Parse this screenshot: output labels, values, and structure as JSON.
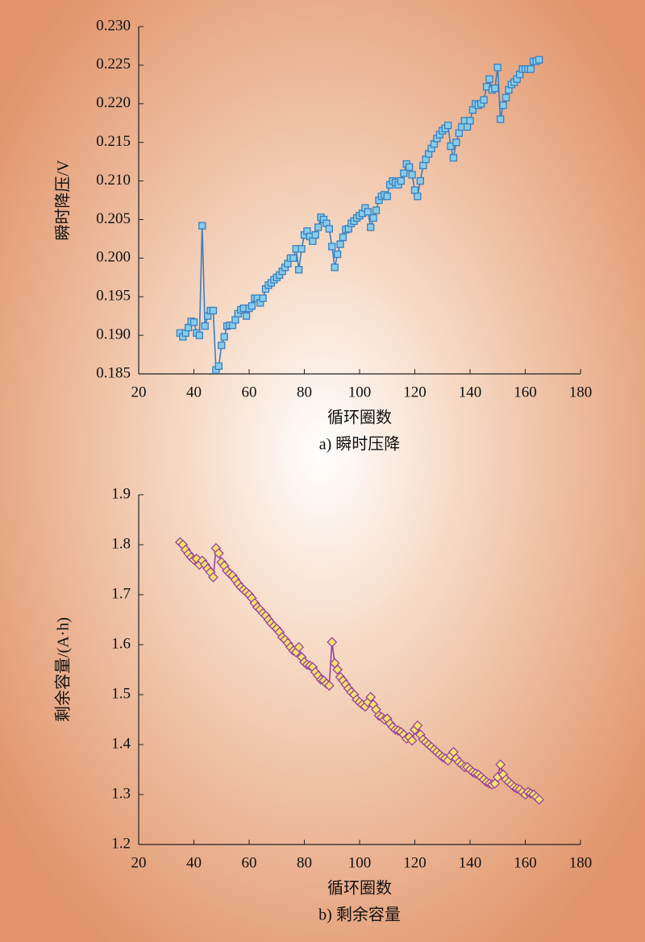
{
  "chart_data": [
    {
      "type": "line",
      "caption": "a) 瞬时压降",
      "xlabel": "循环圈数",
      "ylabel": "瞬时降压/V",
      "xlim": [
        20,
        180
      ],
      "xticks": [
        20,
        40,
        60,
        80,
        100,
        120,
        140,
        160,
        180
      ],
      "ylim": [
        0.185,
        0.23
      ],
      "yticks": [
        0.185,
        {
          "value": 0.19,
          "label": "0.190"
        },
        0.195,
        {
          "value": 0.2,
          "label": "0.200"
        },
        0.205,
        {
          "value": 0.21,
          "label": "0.210"
        },
        0.215,
        {
          "value": 0.22,
          "label": "0.220"
        },
        0.225,
        {
          "value": 0.23,
          "label": "0.230"
        }
      ],
      "marker": "square",
      "color": "#3a7fc0",
      "marker_fill": "#86cdea",
      "x": [
        35,
        36,
        37,
        38,
        39,
        40,
        41,
        42,
        43,
        44,
        45,
        46,
        47,
        48,
        49,
        50,
        51,
        52,
        53,
        54,
        55,
        56,
        57,
        58,
        59,
        60,
        61,
        62,
        63,
        64,
        65,
        66,
        67,
        68,
        69,
        70,
        71,
        72,
        73,
        74,
        75,
        76,
        77,
        78,
        79,
        80,
        81,
        82,
        83,
        84,
        85,
        86,
        87,
        88,
        89,
        90,
        91,
        92,
        93,
        94,
        95,
        96,
        97,
        98,
        99,
        100,
        101,
        102,
        103,
        104,
        105,
        106,
        107,
        108,
        109,
        110,
        111,
        112,
        113,
        114,
        115,
        116,
        117,
        118,
        119,
        120,
        121,
        122,
        123,
        124,
        125,
        126,
        127,
        128,
        129,
        130,
        131,
        132,
        133,
        134,
        135,
        136,
        137,
        138,
        139,
        140,
        141,
        142,
        143,
        144,
        145,
        146,
        147,
        148,
        149,
        150,
        151,
        152,
        153,
        154,
        155,
        156,
        157,
        158,
        159,
        160,
        161,
        162,
        163,
        164,
        165
      ],
      "values": [
        0.1903,
        0.1898,
        0.1903,
        0.191,
        0.1918,
        0.1917,
        0.1903,
        0.19,
        0.2042,
        0.1912,
        0.1925,
        0.1932,
        0.1932,
        0.1855,
        0.186,
        0.1887,
        0.1898,
        0.1912,
        0.1913,
        0.1913,
        0.192,
        0.1928,
        0.1933,
        0.1935,
        0.1925,
        0.1935,
        0.1938,
        0.1948,
        0.1948,
        0.1942,
        0.1948,
        0.196,
        0.1965,
        0.1968,
        0.1972,
        0.1975,
        0.1978,
        0.1983,
        0.1988,
        0.1993,
        0.2,
        0.2,
        0.2012,
        0.1985,
        0.2012,
        0.203,
        0.2035,
        0.2028,
        0.2022,
        0.203,
        0.204,
        0.2053,
        0.205,
        0.2045,
        0.2038,
        0.2015,
        0.1988,
        0.2005,
        0.2018,
        0.2027,
        0.2037,
        0.2038,
        0.2045,
        0.2048,
        0.2052,
        0.2055,
        0.2058,
        0.2065,
        0.206,
        0.204,
        0.2052,
        0.2062,
        0.2075,
        0.208,
        0.2082,
        0.208,
        0.2095,
        0.21,
        0.2098,
        0.2095,
        0.21,
        0.211,
        0.2122,
        0.2118,
        0.2108,
        0.2088,
        0.208,
        0.21,
        0.212,
        0.2128,
        0.2135,
        0.2142,
        0.2148,
        0.2155,
        0.216,
        0.2165,
        0.2168,
        0.2172,
        0.2145,
        0.213,
        0.215,
        0.2162,
        0.217,
        0.2178,
        0.217,
        0.2178,
        0.2192,
        0.22,
        0.2198,
        0.22,
        0.2205,
        0.2222,
        0.2232,
        0.2218,
        0.222,
        0.2247,
        0.218,
        0.2198,
        0.2208,
        0.2218,
        0.2225,
        0.2228,
        0.2232,
        0.2238,
        0.2245,
        0.2245,
        0.2245,
        0.2245,
        0.2255,
        0.2255,
        0.2257
      ]
    },
    {
      "type": "line",
      "caption": "b) 剩余容量",
      "xlabel": "循环圈数",
      "ylabel": "剩余容量/(A·h)",
      "xlim": [
        20,
        180
      ],
      "xticks": [
        20,
        40,
        60,
        80,
        100,
        120,
        140,
        160,
        180
      ],
      "ylim": [
        1.2,
        1.9
      ],
      "yticks": [
        1.2,
        1.3,
        1.4,
        1.5,
        1.6,
        1.7,
        1.8,
        1.9
      ],
      "marker": "diamond",
      "color": "#9b3fa0",
      "marker_fill": "#f5e36a",
      "x": [
        35,
        36,
        37,
        38,
        39,
        40,
        41,
        42,
        43,
        44,
        45,
        46,
        47,
        48,
        49,
        50,
        51,
        52,
        53,
        54,
        55,
        56,
        57,
        58,
        59,
        60,
        61,
        62,
        63,
        64,
        65,
        66,
        67,
        68,
        69,
        70,
        71,
        72,
        73,
        74,
        75,
        76,
        77,
        78,
        79,
        80,
        81,
        82,
        83,
        84,
        85,
        86,
        87,
        88,
        89,
        90,
        91,
        92,
        93,
        94,
        95,
        96,
        97,
        98,
        99,
        100,
        101,
        102,
        103,
        104,
        105,
        106,
        107,
        108,
        109,
        110,
        111,
        112,
        113,
        114,
        115,
        116,
        117,
        118,
        119,
        120,
        121,
        122,
        123,
        124,
        125,
        126,
        127,
        128,
        129,
        130,
        131,
        132,
        133,
        134,
        135,
        136,
        137,
        138,
        139,
        140,
        141,
        142,
        143,
        144,
        145,
        146,
        147,
        148,
        149,
        150,
        151,
        152,
        153,
        154,
        155,
        156,
        157,
        158,
        159,
        160,
        161,
        162,
        163,
        164,
        165
      ],
      "values": [
        1.805,
        1.8,
        1.79,
        1.782,
        1.775,
        1.77,
        1.772,
        1.76,
        1.768,
        1.76,
        1.752,
        1.745,
        1.735,
        1.793,
        1.783,
        1.765,
        1.758,
        1.748,
        1.742,
        1.738,
        1.73,
        1.722,
        1.715,
        1.71,
        1.705,
        1.7,
        1.693,
        1.683,
        1.675,
        1.67,
        1.663,
        1.658,
        1.65,
        1.643,
        1.637,
        1.632,
        1.625,
        1.615,
        1.61,
        1.603,
        1.595,
        1.588,
        1.585,
        1.595,
        1.575,
        1.565,
        1.56,
        1.558,
        1.555,
        1.545,
        1.538,
        1.53,
        1.528,
        1.522,
        1.518,
        1.605,
        1.563,
        1.55,
        1.535,
        1.528,
        1.52,
        1.512,
        1.505,
        1.5,
        1.49,
        1.485,
        1.48,
        1.476,
        1.485,
        1.495,
        1.48,
        1.47,
        1.458,
        1.455,
        1.45,
        1.452,
        1.442,
        1.435,
        1.43,
        1.428,
        1.425,
        1.42,
        1.412,
        1.415,
        1.408,
        1.43,
        1.438,
        1.42,
        1.41,
        1.405,
        1.4,
        1.395,
        1.39,
        1.385,
        1.38,
        1.375,
        1.372,
        1.368,
        1.378,
        1.385,
        1.372,
        1.365,
        1.36,
        1.355,
        1.355,
        1.35,
        1.345,
        1.342,
        1.34,
        1.335,
        1.33,
        1.325,
        1.322,
        1.32,
        1.322,
        1.335,
        1.36,
        1.34,
        1.33,
        1.325,
        1.32,
        1.315,
        1.312,
        1.31,
        1.305,
        1.3,
        1.305,
        1.302,
        1.3,
        1.295,
        1.29
      ]
    }
  ]
}
